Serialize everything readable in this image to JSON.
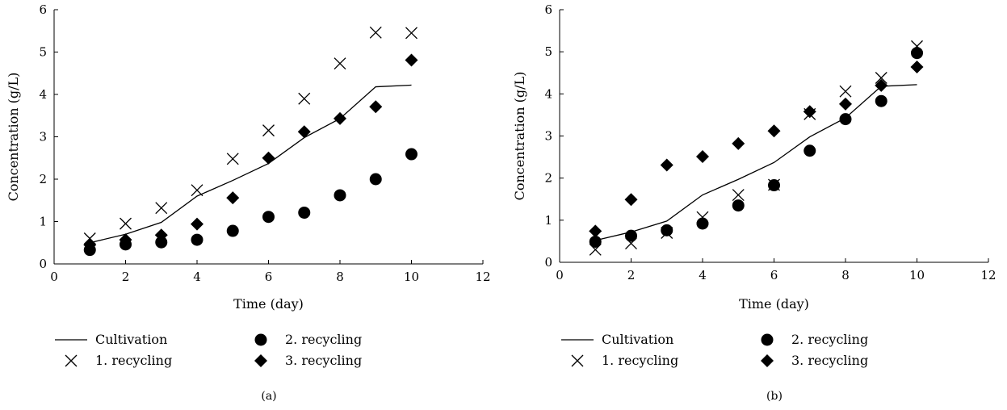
{
  "legend": {
    "entries": [
      {
        "key": "cultivation",
        "label": "Cultivation",
        "marker": "line"
      },
      {
        "key": "r2",
        "label": "2. recycling",
        "marker": "circle"
      },
      {
        "key": "r1",
        "label": "1. recycling",
        "marker": "cross"
      },
      {
        "key": "r3",
        "label": "3. recycling",
        "marker": "diamond"
      }
    ]
  },
  "colors": {
    "ink": "#000000",
    "background": "#ffffff"
  },
  "chart_data": [
    {
      "panel": "(a)",
      "type": "scatter",
      "xlabel": "Time (day)",
      "ylabel": "Concentration (g/L)",
      "xlim": [
        0,
        12
      ],
      "ylim": [
        0,
        6
      ],
      "xticks": [
        0,
        2,
        4,
        6,
        8,
        10,
        12
      ],
      "yticks": [
        0,
        1,
        2,
        3,
        4,
        5,
        6
      ],
      "grid": false,
      "legend_position": "bottom",
      "series": [
        {
          "name": "Cultivation",
          "key": "cultivation",
          "marker": "line",
          "x": [
            1,
            2,
            3,
            4,
            5,
            6,
            7,
            8,
            9,
            10
          ],
          "y": [
            0.5,
            0.7,
            0.98,
            1.6,
            1.97,
            2.37,
            2.98,
            3.43,
            4.18,
            4.22
          ]
        },
        {
          "name": "1. recycling",
          "key": "r1",
          "marker": "cross",
          "x": [
            1,
            2,
            3,
            4,
            5,
            6,
            7,
            8,
            9,
            10
          ],
          "y": [
            0.6,
            0.95,
            1.32,
            1.74,
            2.48,
            3.15,
            3.9,
            4.73,
            5.46,
            5.45
          ]
        },
        {
          "name": "2. recycling",
          "key": "r2",
          "marker": "circle",
          "x": [
            1,
            2,
            3,
            4,
            5,
            6,
            7,
            8,
            9,
            10
          ],
          "y": [
            0.33,
            0.46,
            0.51,
            0.57,
            0.78,
            1.11,
            1.21,
            1.62,
            2.0,
            2.59
          ]
        },
        {
          "name": "3. recycling",
          "key": "r3",
          "marker": "diamond",
          "x": [
            1,
            2,
            3,
            4,
            5,
            6,
            7,
            8,
            9,
            10
          ],
          "y": [
            0.45,
            0.57,
            0.68,
            0.94,
            1.56,
            2.5,
            3.12,
            3.43,
            3.71,
            4.81
          ]
        }
      ]
    },
    {
      "panel": "(b)",
      "type": "scatter",
      "xlabel": "Time (day)",
      "ylabel": "Concentration (g/L)",
      "xlim": [
        0,
        12
      ],
      "ylim": [
        0,
        6
      ],
      "xticks": [
        0,
        2,
        4,
        6,
        8,
        10,
        12
      ],
      "yticks": [
        0,
        1,
        2,
        3,
        4,
        5,
        6
      ],
      "grid": false,
      "legend_position": "bottom",
      "series": [
        {
          "name": "Cultivation",
          "key": "cultivation",
          "marker": "line",
          "x": [
            1,
            2,
            3,
            4,
            5,
            6,
            7,
            8,
            9,
            10
          ],
          "y": [
            0.52,
            0.72,
            0.98,
            1.6,
            1.97,
            2.37,
            2.98,
            3.43,
            4.18,
            4.22
          ]
        },
        {
          "name": "1. recycling",
          "key": "r1",
          "marker": "cross",
          "x": [
            1,
            2,
            3,
            4,
            5,
            6,
            7,
            8,
            9,
            10
          ],
          "y": [
            0.3,
            0.45,
            0.7,
            1.07,
            1.6,
            1.84,
            3.52,
            4.06,
            4.38,
            5.13
          ]
        },
        {
          "name": "2. recycling",
          "key": "r2",
          "marker": "circle",
          "x": [
            1,
            2,
            3,
            4,
            5,
            6,
            7,
            8,
            9,
            10
          ],
          "y": [
            0.49,
            0.63,
            0.76,
            0.92,
            1.35,
            1.83,
            2.65,
            3.4,
            3.83,
            4.97
          ]
        },
        {
          "name": "3. recycling",
          "key": "r3",
          "marker": "diamond",
          "x": [
            1,
            2,
            3,
            4,
            5,
            6,
            7,
            8,
            9,
            10
          ],
          "y": [
            0.74,
            1.49,
            2.31,
            2.51,
            2.82,
            3.12,
            3.58,
            3.76,
            4.2,
            4.64
          ]
        }
      ]
    }
  ]
}
